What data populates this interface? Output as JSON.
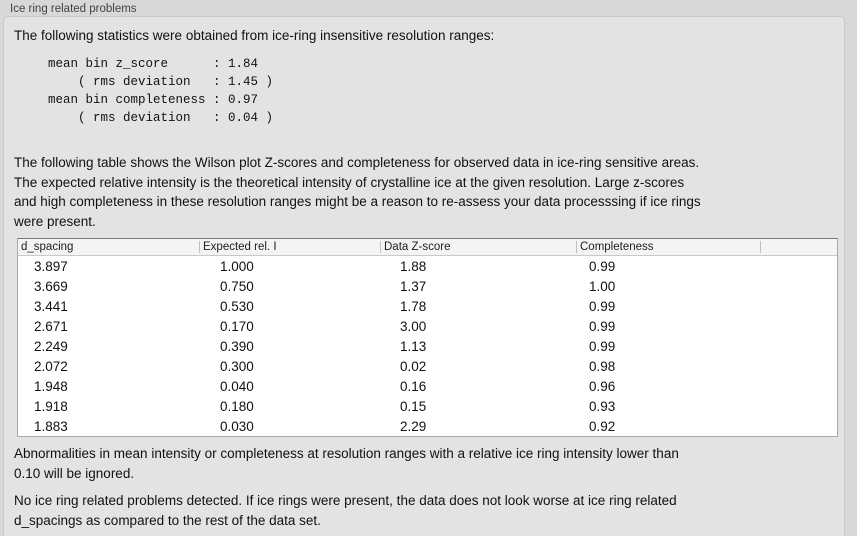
{
  "panel": {
    "title": "Ice ring related problems"
  },
  "intro": {
    "text": "The following statistics were obtained from ice-ring insensitive resolution ranges:"
  },
  "stats_block": {
    "lines": [
      "mean bin z_score      : 1.84",
      "    ( rms deviation   : 1.45 )",
      "mean bin completeness : 0.97",
      "    ( rms deviation   : 0.04 )"
    ]
  },
  "description": {
    "lines": [
      "The following table shows the Wilson plot Z-scores and completeness for observed data in ice-ring sensitive areas.",
      "The expected relative intensity is the theoretical intensity of crystalline ice at the given resolution. Large z-scores",
      "and high completeness in these resolution ranges might be a reason to re-assess your data processsing if ice rings",
      "were present."
    ]
  },
  "table": {
    "columns": [
      "d_spacing",
      "Expected rel. I",
      "Data Z-score",
      "Completeness"
    ],
    "rows": [
      [
        "3.897",
        "1.000",
        "1.88",
        "0.99"
      ],
      [
        "3.669",
        "0.750",
        "1.37",
        "1.00"
      ],
      [
        "3.441",
        "0.530",
        "1.78",
        "0.99"
      ],
      [
        "2.671",
        "0.170",
        "3.00",
        "0.99"
      ],
      [
        "2.249",
        "0.390",
        "1.13",
        "0.99"
      ],
      [
        "2.072",
        "0.300",
        "0.02",
        "0.98"
      ],
      [
        "1.948",
        "0.040",
        "0.16",
        "0.96"
      ],
      [
        "1.918",
        "0.180",
        "0.15",
        "0.93"
      ],
      [
        "1.883",
        "0.030",
        "2.29",
        "0.92"
      ]
    ]
  },
  "note": {
    "lines": [
      "Abnormalities in mean intensity or completeness at resolution ranges with a relative ice ring intensity lower than",
      "0.10 will be ignored."
    ]
  },
  "conclusion": {
    "lines": [
      "No ice ring related problems detected. If ice rings were present, the data does not look worse at ice ring related",
      "d_spacings as compared to the rest of the data set."
    ]
  },
  "colors": {
    "page_bg": "#d8d8d8",
    "panel_bg": "#e3e3e3",
    "table_bg": "#ffffff",
    "table_header_bg": "#f4f4f4",
    "text": "#111111"
  }
}
